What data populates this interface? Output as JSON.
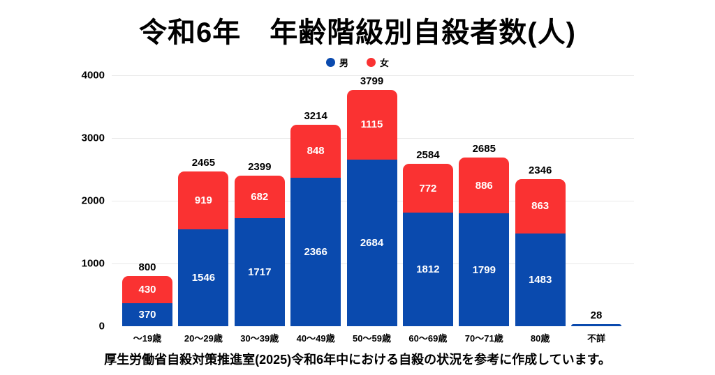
{
  "title": "令和6年　年齢階級別自殺者数(人)",
  "legend": {
    "male": "男",
    "female": "女"
  },
  "footer": "厚生労働省自殺対策推進室(2025)令和6年中における自殺の状況を参考に作成しています。",
  "colors": {
    "male": "#0a4aae",
    "female": "#fa3232",
    "grid": "#e9e9e9",
    "text": "#000000"
  },
  "chart_data": {
    "type": "bar",
    "subtype": "stacked",
    "title": "令和6年　年齢階級別自殺者数(人)",
    "categories": [
      "～19歳",
      "20～29歳",
      "30～39歳",
      "40～49歳",
      "50～59歳",
      "60～69歳",
      "70～71歳",
      "80歳",
      "不詳"
    ],
    "series": [
      {
        "name": "男",
        "color": "#0a4aae",
        "values": [
          370,
          1546,
          1717,
          2366,
          2684,
          1812,
          1799,
          1483,
          28
        ]
      },
      {
        "name": "女",
        "color": "#fa3232",
        "values": [
          430,
          919,
          682,
          848,
          1115,
          772,
          886,
          863,
          0
        ]
      }
    ],
    "totals": [
      800,
      2465,
      2399,
      3214,
      3799,
      2584,
      2685,
      2346,
      28
    ],
    "xlabel": "",
    "ylabel": "",
    "ylim": [
      0,
      4000
    ],
    "yticks": [
      0,
      1000,
      2000,
      3000,
      4000
    ],
    "grid": true,
    "legend_position": "top"
  }
}
